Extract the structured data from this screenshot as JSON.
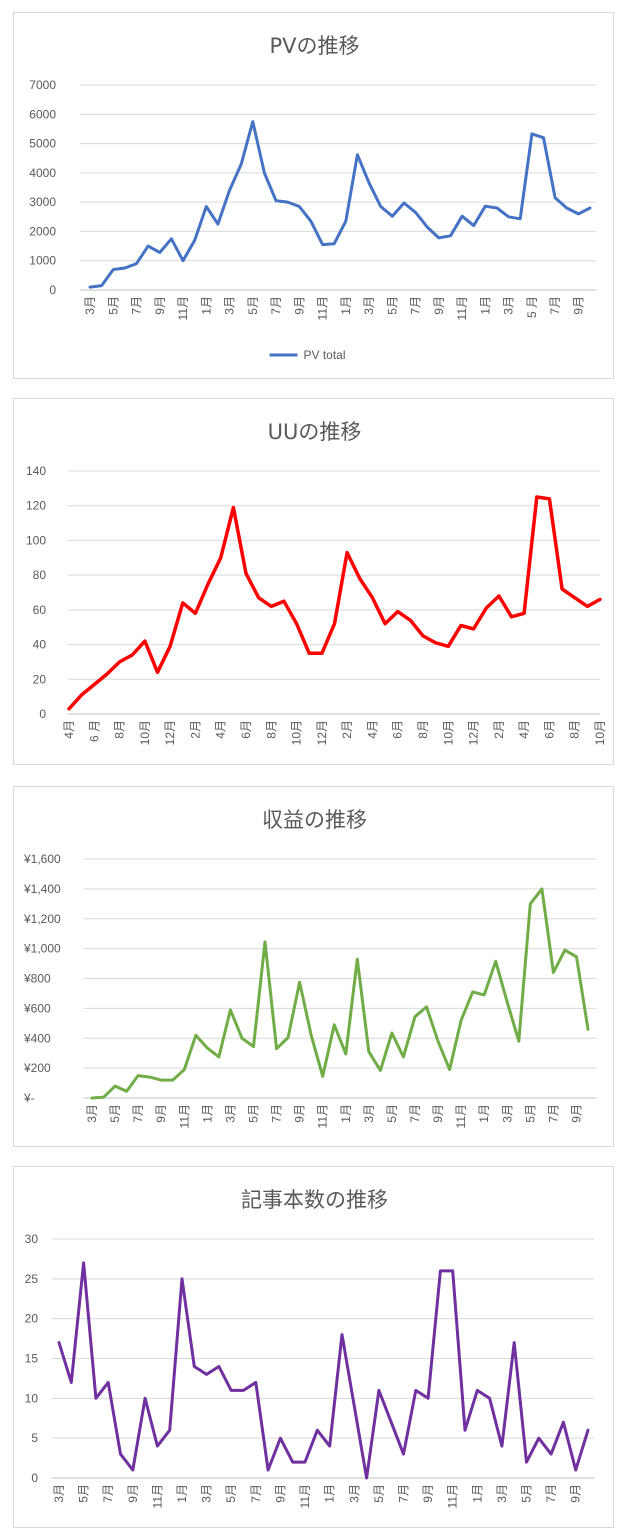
{
  "chart_data": [
    {
      "type": "line",
      "title": "PVの推移",
      "xlabel": "",
      "ylabel": "",
      "ylim": [
        0,
        7000
      ],
      "yticks": [
        "0",
        "1000",
        "2000",
        "3000",
        "4000",
        "5000",
        "6000",
        "7000"
      ],
      "categories": [
        "3月",
        "4月",
        "5月",
        "6月",
        "7月",
        "8月",
        "9月",
        "10月",
        "11月",
        "12月",
        "1月",
        "2月",
        "3月",
        "4月",
        "5月",
        "6月",
        "7月",
        "8月",
        "9月",
        "10月",
        "11月",
        "12月",
        "1月",
        "2月",
        "3月",
        "4月",
        "5月",
        "6月",
        "7月",
        "8月",
        "9月",
        "10月",
        "11月",
        "12月",
        "1月",
        "2月",
        "3月",
        "4月",
        "5 月",
        "6月",
        "7月",
        "8月",
        "9月",
        "10月"
      ],
      "series": [
        {
          "name": "PV total",
          "color": "#4472c4",
          "values": [
            100,
            150,
            700,
            750,
            900,
            1500,
            1280,
            1750,
            1000,
            1700,
            2850,
            2250,
            3400,
            4300,
            5750,
            4000,
            3050,
            3000,
            2850,
            2350,
            1550,
            1580,
            2350,
            4620,
            3650,
            2850,
            2520,
            2970,
            2650,
            2150,
            1780,
            1850,
            2520,
            2200,
            2860,
            2800,
            2500,
            2430,
            5330,
            5200,
            3150,
            2800,
            2600,
            2800
          ]
        }
      ],
      "legend": "bottom",
      "grid": true
    },
    {
      "type": "line",
      "title": "UUの推移",
      "xlabel": "",
      "ylabel": "",
      "ylim": [
        0,
        140
      ],
      "yticks": [
        "0",
        "20",
        "40",
        "60",
        "80",
        "100",
        "120",
        "140"
      ],
      "categories": [
        "4月",
        "5月",
        "6 月",
        "7月",
        "8月",
        "9月",
        "10月",
        "11月",
        "12月",
        "1月",
        "2月",
        "3月",
        "4月",
        "5月",
        "6月",
        "7月",
        "8月",
        "9月",
        "10月",
        "11月",
        "12月",
        "1月",
        "2月",
        "3月",
        "4月",
        "5月",
        "6月",
        "7月",
        "8月",
        "9月",
        "10月",
        "11月",
        "12月",
        "1月",
        "2月",
        "3月",
        "4月",
        "5月",
        "6月",
        "7月",
        "8月",
        "9月",
        "10月"
      ],
      "series": [
        {
          "color": "#ff0000",
          "values": [
            3,
            11,
            17,
            23,
            30,
            34,
            42,
            24,
            39,
            64,
            58,
            75,
            90,
            119,
            81,
            67,
            62,
            65,
            52,
            35,
            35,
            52,
            93,
            78,
            67,
            52,
            59,
            54,
            45,
            41,
            39,
            51,
            49,
            61,
            68,
            56,
            58,
            125,
            124,
            72,
            67,
            62,
            66
          ]
        }
      ],
      "grid": true
    },
    {
      "type": "line",
      "title": "収益の推移",
      "xlabel": "",
      "ylabel": "",
      "ylim": [
        0,
        1600
      ],
      "yticks": [
        "¥-",
        "¥200",
        "¥400",
        "¥600",
        "¥800",
        "¥1,000",
        "¥1,200",
        "¥1,400",
        "¥1,600"
      ],
      "categories": [
        "3月",
        "4月",
        "5月",
        "6月",
        "7月",
        "8月",
        "9月",
        "10月",
        "11月",
        "12月",
        "1月",
        "2月",
        "3月",
        "4月",
        "5月",
        "6月",
        "7月",
        "8月",
        "9月",
        "10月",
        "11月",
        "12月",
        "1月",
        "2月",
        "3月",
        "4月",
        "5月",
        "6月",
        "7月",
        "8月",
        "9月",
        "10月",
        "11月",
        "12月",
        "1月",
        "2月",
        "3月",
        "4月",
        "5月",
        "6月",
        "7月",
        "8月",
        "9月",
        "10月"
      ],
      "series": [
        {
          "color": "#70ad47",
          "values": [
            0,
            5,
            80,
            45,
            150,
            140,
            120,
            120,
            190,
            420,
            335,
            275,
            590,
            400,
            345,
            1045,
            330,
            405,
            775,
            420,
            145,
            490,
            295,
            930,
            310,
            185,
            435,
            275,
            545,
            610,
            380,
            190,
            520,
            710,
            690,
            915,
            640,
            380,
            1300,
            1400,
            840,
            990,
            945,
            460
          ]
        }
      ],
      "grid": true
    },
    {
      "type": "line",
      "title": "記事本数の推移",
      "xlabel": "",
      "ylabel": "",
      "ylim": [
        0,
        30
      ],
      "yticks": [
        "0",
        "5",
        "10",
        "15",
        "20",
        "25",
        "30"
      ],
      "categories": [
        "3月",
        "4月",
        "5月",
        "6月",
        "7月",
        "8月",
        "9月",
        "10月",
        "11月",
        "12月",
        "1月",
        "2月",
        "3月",
        "4月",
        "5月",
        "6月",
        "7月",
        "8月",
        "9月",
        "10月",
        "11月",
        "12月",
        "1月",
        "2月",
        "3月",
        "4月",
        "5月",
        "6月",
        "7月",
        "8月",
        "9月",
        "10月",
        "11月",
        "12月",
        "1月",
        "2月",
        "3月",
        "4月",
        "5月",
        "6月",
        "7月",
        "8月",
        "9月",
        "10月"
      ],
      "series": [
        {
          "color": "#7030a0",
          "values": [
            17,
            12,
            27,
            10,
            12,
            3,
            1,
            10,
            4,
            6,
            25,
            14,
            13,
            14,
            11,
            11,
            12,
            1,
            5,
            2,
            2,
            6,
            4,
            18,
            9,
            0,
            11,
            7,
            3,
            11,
            10,
            26,
            26,
            6,
            11,
            10,
            4,
            17,
            2,
            5,
            3,
            7,
            1,
            6
          ]
        }
      ],
      "grid": true
    }
  ]
}
